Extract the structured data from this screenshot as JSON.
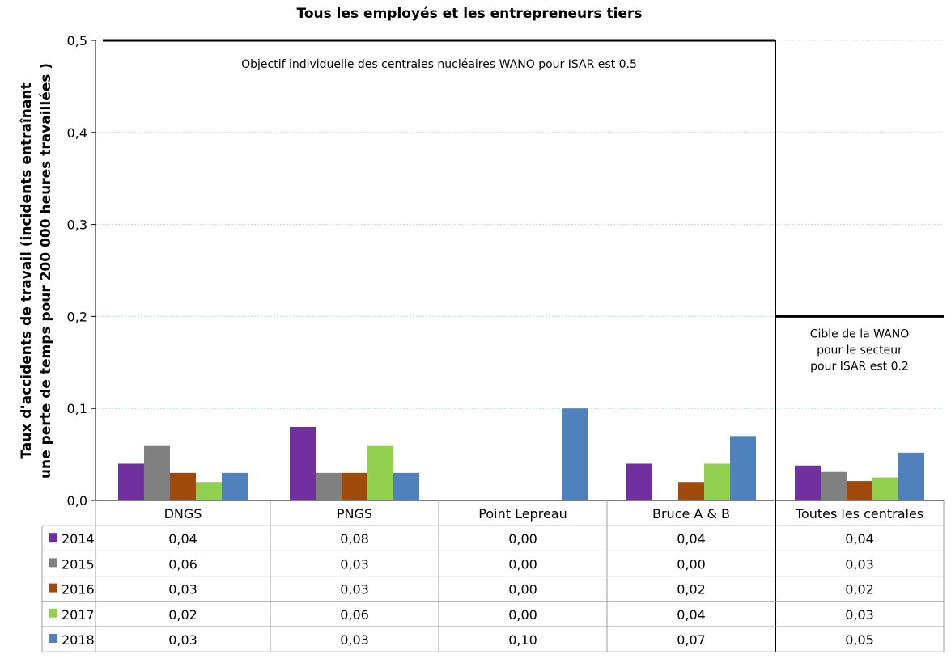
{
  "chart_data": {
    "type": "bar",
    "title": "Tous les employés et les entrepreneurs tiers",
    "ylabel_lines": [
      "Taux d'accidents de travail (incidents entraînant",
      "une perte de temps pour 200 000 heures travaillées )"
    ],
    "ylim": [
      0,
      0.5
    ],
    "yticks": [
      "0,0",
      "0,1",
      "0,2",
      "0,3",
      "0,4",
      "0,5"
    ],
    "grid": true,
    "categories": [
      "DNGS",
      "PNGS",
      "Point Lepreau",
      "Bruce A & B",
      "Toutes les centrales"
    ],
    "series": [
      {
        "name": "2014",
        "color": "#7030a0",
        "values": [
          0.04,
          0.08,
          0.0,
          0.04,
          0.038
        ],
        "labels": [
          "0,04",
          "0,08",
          "0,00",
          "0,04",
          "0,04"
        ]
      },
      {
        "name": "2015",
        "color": "#808080",
        "values": [
          0.06,
          0.03,
          0.0,
          0.0,
          0.031
        ],
        "labels": [
          "0,06",
          "0,03",
          "0,00",
          "0,00",
          "0,03"
        ]
      },
      {
        "name": "2016",
        "color": "#a04a0c",
        "values": [
          0.03,
          0.03,
          0.0,
          0.02,
          0.021
        ],
        "labels": [
          "0,03",
          "0,03",
          "0,00",
          "0,02",
          "0,02"
        ]
      },
      {
        "name": "2017",
        "color": "#92d050",
        "values": [
          0.02,
          0.06,
          0.0,
          0.04,
          0.025
        ],
        "labels": [
          "0,02",
          "0,06",
          "0,00",
          "0,04",
          "0,03"
        ]
      },
      {
        "name": "2018",
        "color": "#4f81bd",
        "values": [
          0.03,
          0.03,
          0.1,
          0.07,
          0.052
        ],
        "labels": [
          "0,03",
          "0,03",
          "0,10",
          "0,07",
          "0,05"
        ]
      }
    ],
    "targets": [
      {
        "value": 0.5,
        "note": [
          "Objectif individuelle des centrales nucléaires WANO pour ISAR est 0.5"
        ]
      },
      {
        "value": 0.2,
        "note": [
          "Cible de la WANO",
          "pour le secteur",
          "pour ISAR est 0.2"
        ]
      }
    ]
  }
}
